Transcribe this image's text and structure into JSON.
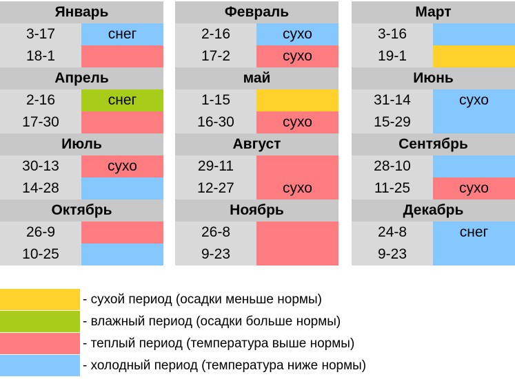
{
  "colors": {
    "dry": "#ffd12a",
    "wet": "#a8cc1a",
    "warm": "#ff7c80",
    "cold": "#85c8ff",
    "none": "#ffffff"
  },
  "months": [
    {
      "name": "Январь",
      "rows": [
        {
          "range": "3-17",
          "status": "cold",
          "text": "снег"
        },
        {
          "range": "18-1",
          "status": "warm",
          "text": ""
        }
      ]
    },
    {
      "name": "Февраль",
      "rows": [
        {
          "range": "2-16",
          "status": "cold",
          "text": "сухо"
        },
        {
          "range": "17-2",
          "status": "warm",
          "text": "сухо"
        }
      ]
    },
    {
      "name": "Март",
      "rows": [
        {
          "range": "3-16",
          "status": "cold",
          "text": ""
        },
        {
          "range": "19-1",
          "status": "dry",
          "text": ""
        }
      ]
    },
    {
      "name": "Апрель",
      "rows": [
        {
          "range": "2-16",
          "status": "wet",
          "text": "снег"
        },
        {
          "range": "17-30",
          "status": "warm",
          "text": ""
        }
      ]
    },
    {
      "name": "май",
      "rows": [
        {
          "range": "1-15",
          "status": "dry",
          "text": ""
        },
        {
          "range": "16-30",
          "status": "warm",
          "text": "сухо"
        }
      ]
    },
    {
      "name": "Июнь",
      "rows": [
        {
          "range": "31-14",
          "status": "cold",
          "text": "сухо"
        },
        {
          "range": "15-29",
          "status": "cold",
          "text": ""
        }
      ]
    },
    {
      "name": "Июль",
      "rows": [
        {
          "range": "30-13",
          "status": "warm",
          "text": "сухо"
        },
        {
          "range": "14-28",
          "status": "cold",
          "text": ""
        }
      ]
    },
    {
      "name": "Август",
      "rows": [
        {
          "range": "29-11",
          "status": "warm",
          "text": ""
        },
        {
          "range": "12-27",
          "status": "warm",
          "text": "сухо"
        }
      ]
    },
    {
      "name": "Сентябрь",
      "rows": [
        {
          "range": "28-10",
          "status": "cold",
          "text": ""
        },
        {
          "range": "11-25",
          "status": "warm",
          "text": "сухо"
        }
      ]
    },
    {
      "name": "Октябрь",
      "rows": [
        {
          "range": "26-9",
          "status": "warm",
          "text": ""
        },
        {
          "range": "10-25",
          "status": "cold",
          "text": ""
        }
      ]
    },
    {
      "name": "Ноябрь",
      "rows": [
        {
          "range": "26-8",
          "status": "warm",
          "text": ""
        },
        {
          "range": "9-23",
          "status": "warm",
          "text": ""
        }
      ]
    },
    {
      "name": "Декабрь",
      "rows": [
        {
          "range": "24-8",
          "status": "cold",
          "text": "снег"
        },
        {
          "range": "9-23",
          "status": "cold",
          "text": ""
        }
      ]
    }
  ],
  "legend": [
    {
      "status": "dry",
      "text": "- сухой период (осадки меньше нормы)"
    },
    {
      "status": "wet",
      "text": "- влажный период (осадки больше нормы)"
    },
    {
      "status": "warm",
      "text": "- теплый период (температура выше нормы)"
    },
    {
      "status": "cold",
      "text": "- холодный период (температура ниже нормы)"
    }
  ]
}
